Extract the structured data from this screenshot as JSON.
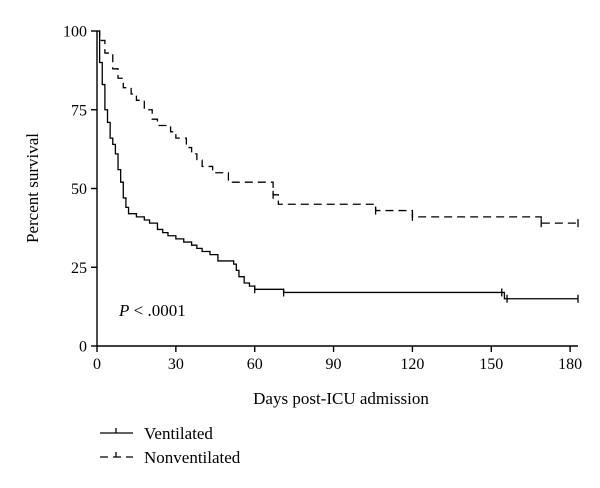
{
  "chart_data": {
    "type": "line",
    "title": "",
    "xlabel": "Days post-ICU admission",
    "ylabel": "Percent survival",
    "xlim": [
      0,
      183
    ],
    "ylim": [
      0,
      100
    ],
    "x_ticks": [
      0,
      30,
      60,
      90,
      120,
      150,
      180
    ],
    "y_ticks": [
      0,
      25,
      50,
      75,
      100
    ],
    "grid": false,
    "legend_position": "bottom-left",
    "annotation": {
      "italic": "P",
      "rest": " < .0001"
    },
    "series": [
      {
        "name": "Ventilated",
        "style": "solid",
        "points": [
          [
            0,
            100
          ],
          [
            1,
            90
          ],
          [
            2,
            83
          ],
          [
            3,
            75
          ],
          [
            4,
            71
          ],
          [
            5,
            66
          ],
          [
            6,
            64
          ],
          [
            7,
            61
          ],
          [
            8,
            56
          ],
          [
            9,
            52
          ],
          [
            10,
            47
          ],
          [
            11,
            44
          ],
          [
            12,
            42
          ],
          [
            15,
            41
          ],
          [
            18,
            40
          ],
          [
            20,
            39
          ],
          [
            23,
            37
          ],
          [
            25,
            36
          ],
          [
            27,
            35
          ],
          [
            30,
            34
          ],
          [
            33,
            33
          ],
          [
            36,
            32
          ],
          [
            38,
            31
          ],
          [
            40,
            30
          ],
          [
            43,
            29
          ],
          [
            46,
            27
          ],
          [
            52,
            26
          ],
          [
            53,
            24
          ],
          [
            54,
            22
          ],
          [
            56,
            20
          ],
          [
            58,
            19
          ],
          [
            60,
            18
          ],
          [
            71,
            17
          ],
          [
            155,
            15
          ],
          [
            183,
            15
          ]
        ],
        "censored": [
          60,
          71,
          154,
          156,
          183
        ]
      },
      {
        "name": "Nonventilated",
        "style": "dashed",
        "points": [
          [
            0,
            100
          ],
          [
            1,
            97
          ],
          [
            3,
            93
          ],
          [
            6,
            88
          ],
          [
            8,
            85
          ],
          [
            10,
            82
          ],
          [
            13,
            80
          ],
          [
            15,
            78
          ],
          [
            18,
            75
          ],
          [
            21,
            72
          ],
          [
            23,
            70
          ],
          [
            28,
            68
          ],
          [
            30,
            66
          ],
          [
            34,
            63
          ],
          [
            36,
            61
          ],
          [
            38,
            59
          ],
          [
            40,
            57
          ],
          [
            44,
            55
          ],
          [
            50,
            52
          ],
          [
            67,
            48
          ],
          [
            69,
            45
          ],
          [
            106,
            43
          ],
          [
            120,
            41
          ],
          [
            169,
            39
          ],
          [
            183,
            39
          ]
        ],
        "censored": [
          67,
          106,
          120,
          169,
          183
        ]
      }
    ]
  }
}
